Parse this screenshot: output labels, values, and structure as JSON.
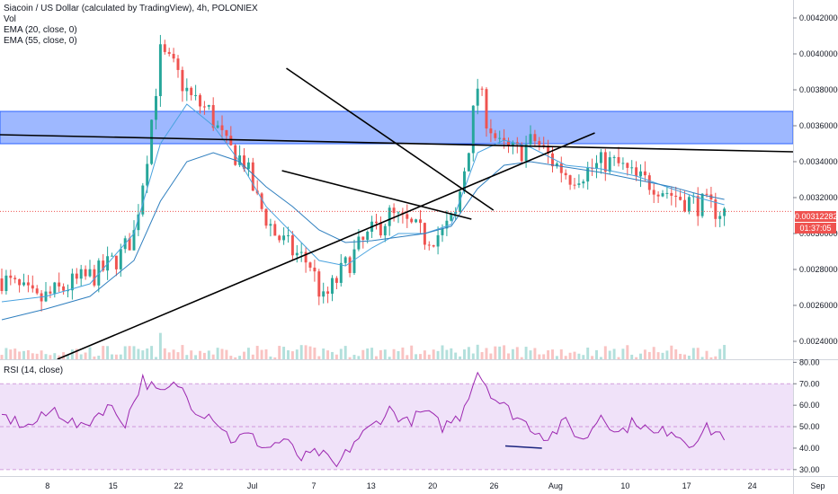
{
  "legend": {
    "title": "Siacoin / US Dollar (calculated by TradingView), 4h, POLONIEX",
    "vol": "Vol",
    "ema20": "EMA (20, close, 0)",
    "ema55": "EMA (55, close, 0)"
  },
  "rsi_legend": "RSI (14, close)",
  "price_tag": {
    "last": "0.00312282",
    "countdown": "01:37:05"
  },
  "colors": {
    "up": "#26a69a",
    "down": "#ef5350",
    "ema": "#4aa3df",
    "zone": "#2962ff",
    "rsi": "#9c27b0",
    "rsi_band": "#e9d5f7"
  },
  "chart_data": [
    {
      "type": "candlestick",
      "title": "Siacoin / US Dollar (calculated by TradingView), 4h, POLONIEX",
      "x_ticks": [
        "8",
        "15",
        "22",
        "Jul",
        "7",
        "13",
        "20",
        "26",
        "Aug",
        "10",
        "17",
        "24",
        "Sep"
      ],
      "y_ticks": [
        "0.00420000",
        "0.00400000",
        "0.00380000",
        "0.00360000",
        "0.00340000",
        "0.00320000",
        "0.00300000",
        "0.00280000",
        "0.00260000",
        "0.00240000"
      ],
      "ylim": [
        0.0023,
        0.0043
      ],
      "last_price": 0.00312282,
      "resistance_zone": [
        0.0035,
        0.00368
      ],
      "swing_path": [
        [
          0,
          0.00275
        ],
        [
          8,
          0.00262
        ],
        [
          16,
          0.00272
        ],
        [
          22,
          0.00278
        ],
        [
          27,
          0.00288
        ],
        [
          30,
          0.003
        ],
        [
          33,
          0.00345
        ],
        [
          36,
          0.004
        ],
        [
          39,
          0.00392
        ],
        [
          43,
          0.00375
        ],
        [
          47,
          0.00368
        ],
        [
          51,
          0.00348
        ],
        [
          55,
          0.0034
        ],
        [
          58,
          0.00318
        ],
        [
          62,
          0.003
        ],
        [
          66,
          0.0029
        ],
        [
          70,
          0.00283
        ],
        [
          73,
          0.00262
        ],
        [
          77,
          0.00278
        ],
        [
          81,
          0.00292
        ],
        [
          85,
          0.00303
        ],
        [
          88,
          0.0031
        ],
        [
          92,
          0.00305
        ],
        [
          96,
          0.00298
        ],
        [
          100,
          0.003
        ],
        [
          103,
          0.0031
        ],
        [
          106,
          0.0035
        ],
        [
          108,
          0.00382
        ],
        [
          110,
          0.00365
        ],
        [
          113,
          0.00348
        ],
        [
          117,
          0.00345
        ],
        [
          121,
          0.00352
        ],
        [
          125,
          0.0034
        ],
        [
          129,
          0.00332
        ],
        [
          133,
          0.00335
        ],
        [
          137,
          0.0034
        ],
        [
          140,
          0.00338
        ],
        [
          144,
          0.0033
        ],
        [
          148,
          0.00328
        ],
        [
          152,
          0.00322
        ],
        [
          156,
          0.00318
        ],
        [
          160,
          0.00315
        ],
        [
          164,
          0.00312
        ]
      ],
      "ema_20_path": [
        [
          0,
          0.00262
        ],
        [
          10,
          0.00265
        ],
        [
          20,
          0.00272
        ],
        [
          30,
          0.003
        ],
        [
          36,
          0.0035
        ],
        [
          42,
          0.00372
        ],
        [
          48,
          0.0036
        ],
        [
          54,
          0.0034
        ],
        [
          60,
          0.00315
        ],
        [
          66,
          0.003
        ],
        [
          72,
          0.00285
        ],
        [
          78,
          0.00282
        ],
        [
          84,
          0.00292
        ],
        [
          90,
          0.003
        ],
        [
          96,
          0.003
        ],
        [
          102,
          0.00305
        ],
        [
          108,
          0.00345
        ],
        [
          114,
          0.00352
        ],
        [
          120,
          0.00348
        ],
        [
          128,
          0.00338
        ],
        [
          136,
          0.00336
        ],
        [
          144,
          0.00332
        ],
        [
          152,
          0.00325
        ],
        [
          158,
          0.0032
        ],
        [
          164,
          0.00316
        ]
      ],
      "ema_55_path": [
        [
          0,
          0.00252
        ],
        [
          10,
          0.00258
        ],
        [
          20,
          0.00265
        ],
        [
          30,
          0.00285
        ],
        [
          36,
          0.00318
        ],
        [
          42,
          0.0034
        ],
        [
          48,
          0.00345
        ],
        [
          54,
          0.0034
        ],
        [
          60,
          0.00326
        ],
        [
          66,
          0.00315
        ],
        [
          72,
          0.00302
        ],
        [
          78,
          0.00295
        ],
        [
          84,
          0.00296
        ],
        [
          90,
          0.00298
        ],
        [
          96,
          0.003
        ],
        [
          102,
          0.00304
        ],
        [
          108,
          0.00325
        ],
        [
          114,
          0.00338
        ],
        [
          120,
          0.0034
        ],
        [
          128,
          0.00337
        ],
        [
          136,
          0.00334
        ],
        [
          144,
          0.0033
        ],
        [
          152,
          0.00326
        ],
        [
          158,
          0.00322
        ],
        [
          164,
          0.00319
        ]
      ]
    },
    {
      "type": "line",
      "title": "RSI (14, close)",
      "y_ticks": [
        "80.00",
        "70.00",
        "60.00",
        "50.00",
        "40.00",
        "30.00"
      ],
      "ylim": [
        27,
        81
      ],
      "band": [
        30,
        70
      ],
      "rsi_path": [
        [
          0,
          55
        ],
        [
          6,
          50
        ],
        [
          12,
          58
        ],
        [
          18,
          49
        ],
        [
          24,
          60
        ],
        [
          28,
          52
        ],
        [
          32,
          72
        ],
        [
          36,
          65
        ],
        [
          40,
          70
        ],
        [
          44,
          58
        ],
        [
          48,
          55
        ],
        [
          52,
          44
        ],
        [
          56,
          46
        ],
        [
          60,
          40
        ],
        [
          64,
          44
        ],
        [
          68,
          35
        ],
        [
          72,
          38
        ],
        [
          76,
          31
        ],
        [
          80,
          43
        ],
        [
          84,
          50
        ],
        [
          88,
          58
        ],
        [
          92,
          52
        ],
        [
          96,
          57
        ],
        [
          100,
          50
        ],
        [
          104,
          55
        ],
        [
          108,
          76
        ],
        [
          112,
          63
        ],
        [
          116,
          56
        ],
        [
          120,
          50
        ],
        [
          124,
          45
        ],
        [
          128,
          52
        ],
        [
          132,
          43
        ],
        [
          136,
          56
        ],
        [
          140,
          47
        ],
        [
          144,
          53
        ],
        [
          148,
          46
        ],
        [
          152,
          49
        ],
        [
          156,
          42
        ],
        [
          160,
          49
        ],
        [
          164,
          46
        ]
      ]
    }
  ]
}
